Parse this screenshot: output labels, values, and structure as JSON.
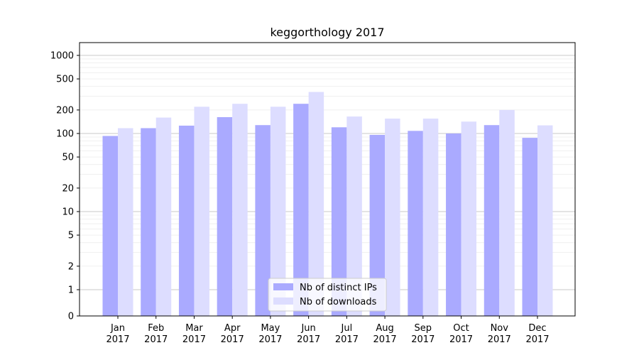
{
  "chart_data": {
    "type": "bar",
    "title": "keggorthology 2017",
    "xlabel": "",
    "ylabel": "",
    "yscale": "symlog",
    "ylim": [
      0,
      1400
    ],
    "yticks": [
      0,
      1,
      2,
      5,
      10,
      20,
      50,
      100,
      200,
      500,
      1000
    ],
    "grid": true,
    "legend_position": "bottom-center",
    "categories": [
      "Jan\n2017",
      "Feb\n2017",
      "Mar\n2017",
      "Apr\n2017",
      "May\n2017",
      "Jun\n2017",
      "Jul\n2017",
      "Aug\n2017",
      "Sep\n2017",
      "Oct\n2017",
      "Nov\n2017",
      "Dec\n2017"
    ],
    "series": [
      {
        "name": "Nb of distinct IPs",
        "color": "#aaaaff",
        "values": [
          93,
          117,
          126,
          162,
          128,
          240,
          120,
          96,
          108,
          100,
          128,
          88
        ]
      },
      {
        "name": "Nb of downloads",
        "color": "#ddddff",
        "values": [
          117,
          160,
          220,
          240,
          220,
          340,
          165,
          155,
          155,
          142,
          200,
          127
        ]
      }
    ]
  }
}
